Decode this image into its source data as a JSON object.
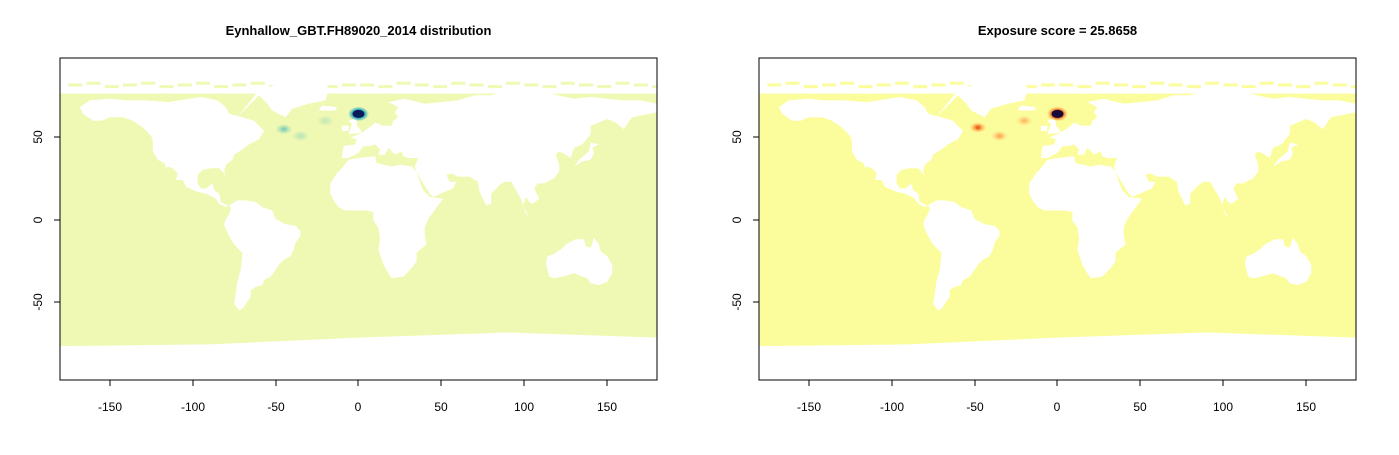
{
  "chart_data": [
    {
      "type": "heatmap",
      "title": "Eynhallow_GBT.FH89020_2014 distribution",
      "xlabel": "",
      "ylabel": "",
      "xlim": [
        -180,
        180
      ],
      "ylim": [
        -95,
        95
      ],
      "x_ticks": [
        -150,
        -100,
        -50,
        0,
        50,
        100,
        150
      ],
      "y_ticks": [
        50,
        0,
        -50
      ],
      "colors": {
        "ocean_base": "#f0f9b4",
        "land": "#ffffff",
        "ramp": [
          "#f0f9b4",
          "#c7e9b4",
          "#7fcdbb",
          "#41b6c4",
          "#1d91c0",
          "#225ea8",
          "#0c2c84",
          "#081d58"
        ]
      },
      "hotspots": [
        {
          "lon": 0,
          "lat": 62,
          "intensity": 1.0
        },
        {
          "lon": -45,
          "lat": 53,
          "intensity": 0.3
        },
        {
          "lon": -35,
          "lat": 49,
          "intensity": 0.18
        },
        {
          "lon": -20,
          "lat": 58,
          "intensity": 0.15
        }
      ]
    },
    {
      "type": "heatmap",
      "title": "Exposure score = 25.8658",
      "xlabel": "",
      "ylabel": "",
      "xlim": [
        -180,
        180
      ],
      "ylim": [
        -95,
        95
      ],
      "x_ticks": [
        -150,
        -100,
        -50,
        0,
        50,
        100,
        150
      ],
      "y_ticks": [
        50,
        0,
        -50
      ],
      "colors": {
        "ocean_base": "#fbfd9c",
        "land": "#ffffff",
        "ramp": [
          "#fbfd9c",
          "#fde68a",
          "#fdb863",
          "#f08c2a",
          "#d7301f",
          "#a50f15",
          "#5c0a3e",
          "#1a0a3a"
        ]
      },
      "hotspots": [
        {
          "lon": 0,
          "lat": 62,
          "intensity": 1.0
        },
        {
          "lon": -48,
          "lat": 54,
          "intensity": 0.55
        },
        {
          "lon": -35,
          "lat": 49,
          "intensity": 0.35
        },
        {
          "lon": -20,
          "lat": 58,
          "intensity": 0.3
        }
      ]
    }
  ]
}
